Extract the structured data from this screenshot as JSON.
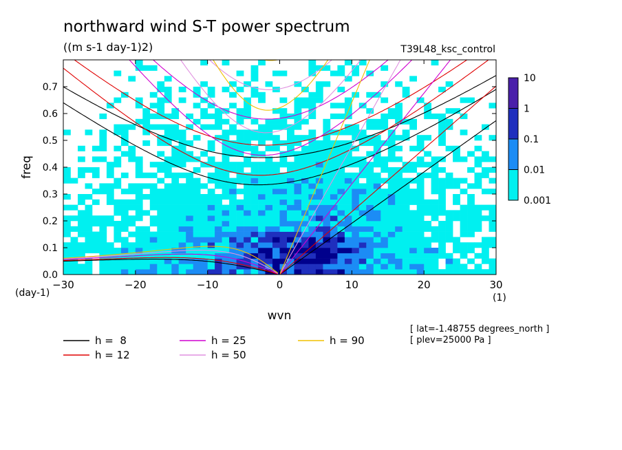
{
  "chart_data": {
    "type": "heatmap",
    "title": "northward wind S-T power spectrum",
    "subtitle": "((m s-1 day-1)2)",
    "run_label": "T39L48_ksc_control",
    "xlabel": "wvn",
    "ylabel": "freq",
    "x_unit": "(1)",
    "y_unit": "(day-1)",
    "xlim": [
      -30,
      30
    ],
    "ylim": [
      0,
      0.8
    ],
    "x_ticks": [
      -30,
      -20,
      -10,
      0,
      10,
      20,
      30
    ],
    "y_ticks": [
      0.0,
      0.1,
      0.2,
      0.3,
      0.4,
      0.5,
      0.6,
      0.7
    ],
    "x_tick_labels": [
      "−30",
      "−20",
      "−10",
      "0",
      "10",
      "20",
      "30"
    ],
    "y_tick_labels": [
      "0.0",
      "0.1",
      "0.2",
      "0.3",
      "0.4",
      "0.5",
      "0.6",
      "0.7"
    ],
    "colorbar": {
      "levels": [
        "0.001",
        "0.01",
        "0.1",
        "1",
        "10"
      ],
      "colors": [
        "#00f0f0",
        "#1c8cf5",
        "#1f2fbe",
        "#00008c"
      ],
      "top_color": "#4a1faa"
    },
    "dispersion_curves": [
      {
        "label": "h =  8",
        "h": 8,
        "color": "#000000"
      },
      {
        "label": "h = 12",
        "h": 12,
        "color": "#e00000"
      },
      {
        "label": "h = 25",
        "h": 25,
        "color": "#d000d0"
      },
      {
        "label": "h = 50",
        "h": 50,
        "color": "#e090e0"
      },
      {
        "label": "h = 90",
        "h": 90,
        "color": "#f0c000"
      }
    ],
    "annotations": [
      "[ lat=-1.48755 degrees_north ]",
      "[ plev=25000 Pa ]"
    ]
  }
}
